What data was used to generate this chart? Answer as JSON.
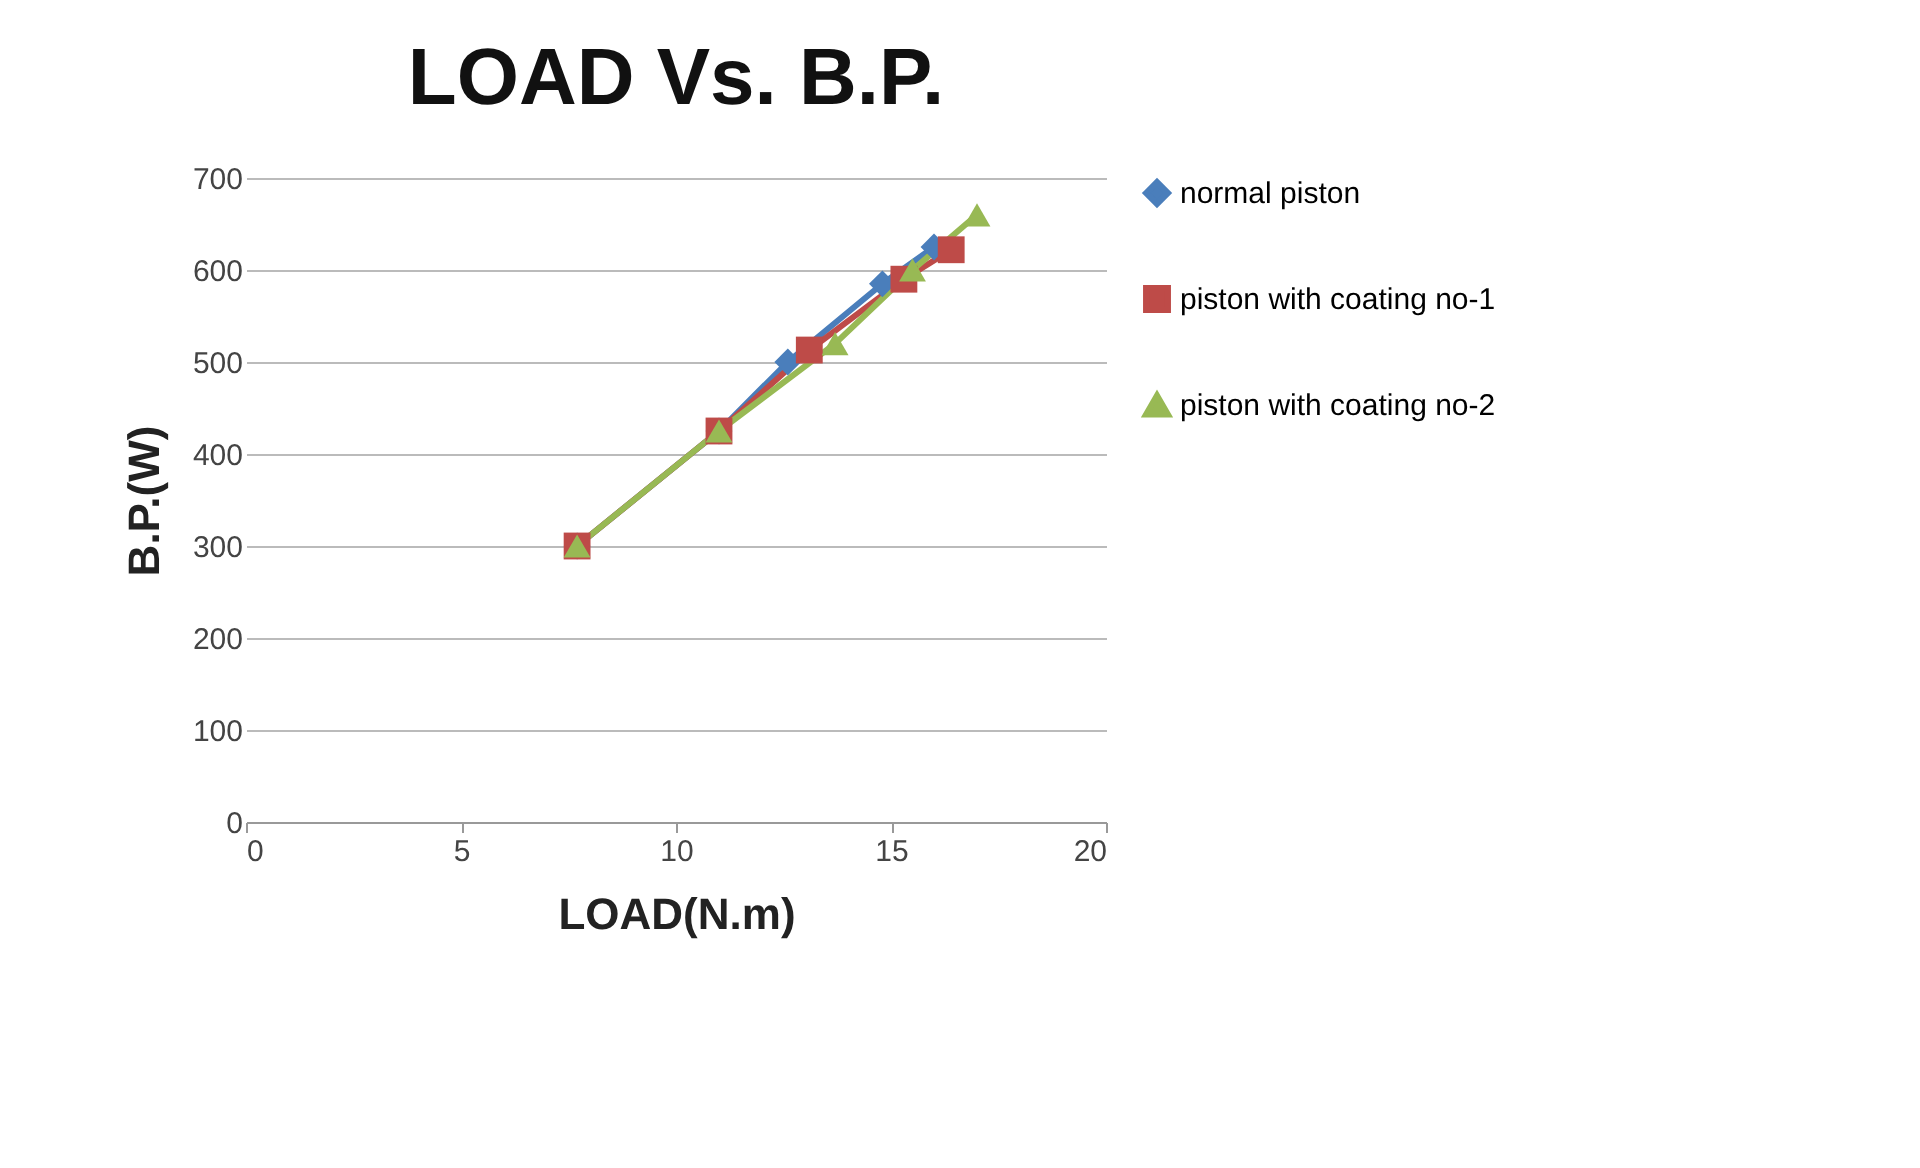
{
  "chart_data": {
    "type": "line",
    "title": "LOAD Vs. B.P.",
    "xlabel": "LOAD(N.m)",
    "ylabel": "B.P.(W)",
    "xlim": [
      0,
      20
    ],
    "xticks": [
      0,
      5,
      10,
      15,
      20
    ],
    "ylim": [
      0,
      700
    ],
    "yticks": [
      0,
      100,
      200,
      300,
      400,
      500,
      600,
      700
    ],
    "grid": "y",
    "legend": "right",
    "series": [
      {
        "name": "normal piston",
        "color": "#4a7ebb",
        "marker": "diamond",
        "x": [
          7.7,
          11,
          12.6,
          14.8,
          16.0
        ],
        "values": [
          300,
          425,
          500,
          585,
          625
        ]
      },
      {
        "name": "piston with coating no-1",
        "color": "#be4b48",
        "marker": "square",
        "x": [
          7.7,
          11,
          13.1,
          15.3,
          16.4
        ],
        "values": [
          300,
          425,
          513,
          590,
          622
        ]
      },
      {
        "name": "piston with coating no-2",
        "color": "#98b954",
        "marker": "triangle",
        "x": [
          7.7,
          11,
          13.7,
          15.5,
          17.0
        ],
        "values": [
          300,
          425,
          520,
          600,
          660
        ]
      }
    ]
  }
}
